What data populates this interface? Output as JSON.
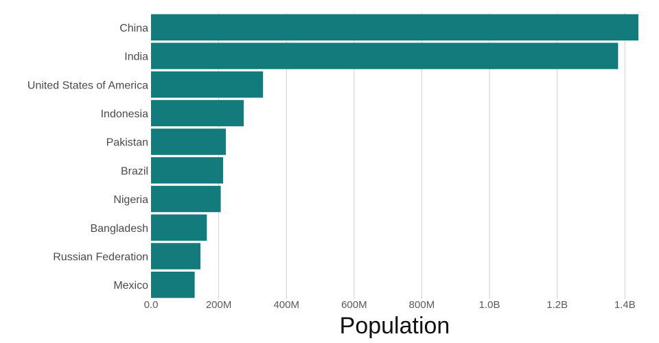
{
  "chart_data": {
    "type": "bar",
    "orientation": "horizontal",
    "categories": [
      "China",
      "India",
      "United States of America",
      "Indonesia",
      "Pakistan",
      "Brazil",
      "Nigeria",
      "Bangladesh",
      "Russian Federation",
      "Mexico"
    ],
    "values": [
      1440000000,
      1380000000,
      331000000,
      274000000,
      221000000,
      213000000,
      206000000,
      165000000,
      146000000,
      129000000
    ],
    "xlabel": "Population",
    "ylabel": "",
    "xlim": [
      0,
      1440000000
    ],
    "x_ticks": [
      0,
      200000000,
      400000000,
      600000000,
      800000000,
      1000000000,
      1200000000,
      1400000000
    ],
    "x_tick_labels": [
      "0.0",
      "200M",
      "400M",
      "600M",
      "800M",
      "1.0B",
      "1.2B",
      "1.4B"
    ],
    "grid": "vertical",
    "bar_color": "#137b7b",
    "grid_color": "#cfcfcf"
  }
}
